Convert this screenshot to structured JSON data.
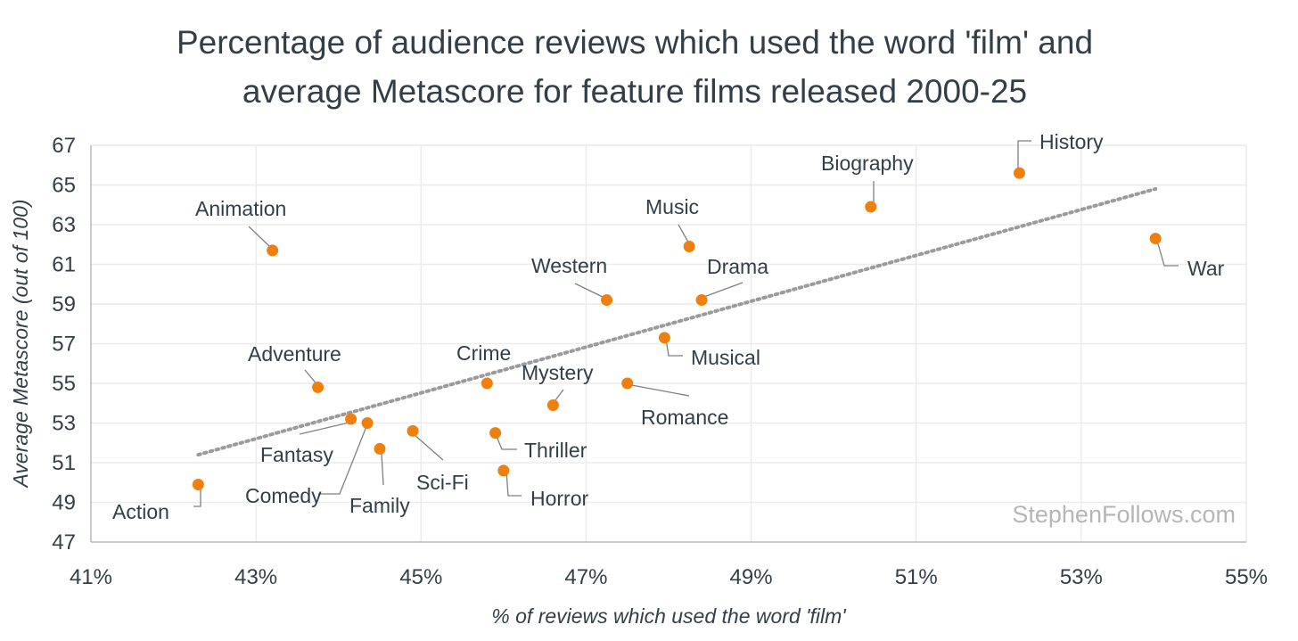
{
  "chart_data": {
    "type": "scatter",
    "title": [
      "Percentage of audience reviews which used the word 'film' and",
      "average Metascore for feature films released 2000-25"
    ],
    "xlabel": "% of reviews which used the word 'film'",
    "ylabel": "Average Metascore (out of 100)",
    "xlim": [
      41,
      55
    ],
    "ylim": [
      47,
      67
    ],
    "x_ticks": [
      41,
      43,
      45,
      47,
      49,
      51,
      53,
      55
    ],
    "x_tick_labels": [
      "41%",
      "43%",
      "45%",
      "47%",
      "49%",
      "51%",
      "53%",
      "55%"
    ],
    "y_ticks": [
      47,
      49,
      51,
      53,
      55,
      57,
      59,
      61,
      63,
      65,
      67
    ],
    "y_tick_labels": [
      "47",
      "49",
      "51",
      "53",
      "55",
      "57",
      "59",
      "61",
      "63",
      "65",
      "67"
    ],
    "grid": true,
    "marker_color": "#f07f0d",
    "trendline": {
      "style": "dotted",
      "color": "#9b9b9b",
      "from": [
        42.3,
        51.4
      ],
      "to": [
        53.9,
        64.8
      ]
    },
    "points": [
      {
        "label": "Action",
        "x": 42.3,
        "y": 49.9
      },
      {
        "label": "Animation",
        "x": 43.2,
        "y": 61.7
      },
      {
        "label": "Adventure",
        "x": 43.75,
        "y": 54.8
      },
      {
        "label": "Fantasy",
        "x": 44.15,
        "y": 53.2
      },
      {
        "label": "Comedy",
        "x": 44.35,
        "y": 53.0
      },
      {
        "label": "Family",
        "x": 44.5,
        "y": 51.7
      },
      {
        "label": "Sci-Fi",
        "x": 44.9,
        "y": 52.6
      },
      {
        "label": "Crime",
        "x": 45.8,
        "y": 55.0
      },
      {
        "label": "Thriller",
        "x": 45.9,
        "y": 52.5
      },
      {
        "label": "Horror",
        "x": 46.0,
        "y": 50.6
      },
      {
        "label": "Mystery",
        "x": 46.6,
        "y": 53.9
      },
      {
        "label": "Western",
        "x": 47.25,
        "y": 59.2
      },
      {
        "label": "Romance",
        "x": 47.5,
        "y": 55.0
      },
      {
        "label": "Musical",
        "x": 47.95,
        "y": 57.3
      },
      {
        "label": "Music",
        "x": 48.25,
        "y": 61.9
      },
      {
        "label": "Drama",
        "x": 48.4,
        "y": 59.2
      },
      {
        "label": "Biography",
        "x": 50.45,
        "y": 63.9
      },
      {
        "label": "History",
        "x": 52.25,
        "y": 65.6
      },
      {
        "label": "War",
        "x": 53.9,
        "y": 62.3
      }
    ],
    "watermark": "StephenFollows.com"
  }
}
